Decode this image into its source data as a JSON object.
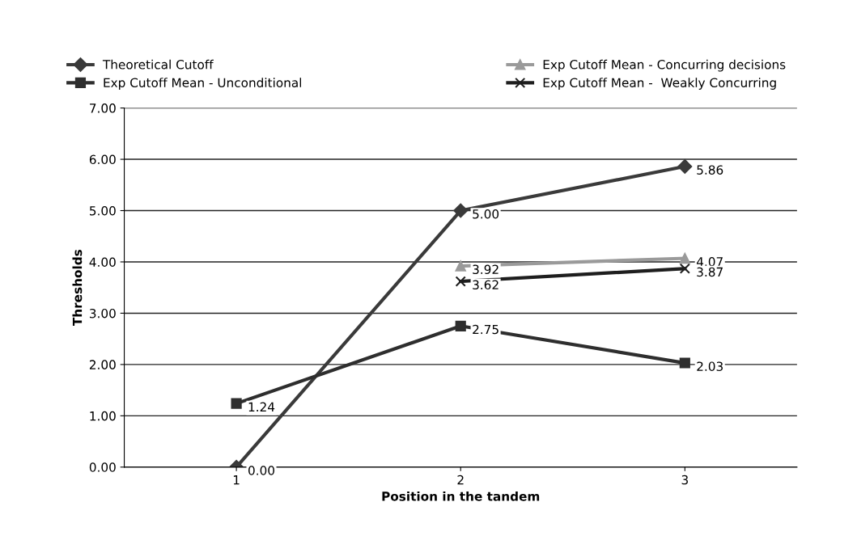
{
  "chart_data": {
    "type": "line",
    "xlabel": "Position in the tandem",
    "ylabel": "Thresholds",
    "categories": [
      "1",
      "2",
      "3"
    ],
    "series": [
      {
        "name": "Theoretical Cutoff",
        "color": "#3a3a3a",
        "marker": "diamond",
        "values": [
          0.0,
          5.0,
          5.86
        ],
        "value_labels": [
          "0.00",
          "5.00",
          "5.86"
        ]
      },
      {
        "name": "Exp Cutoff Mean - Unconditional",
        "color": "#2e2e2e",
        "marker": "square",
        "values": [
          1.24,
          2.75,
          2.03
        ],
        "value_labels": [
          "1.24",
          "2.75",
          "2.03"
        ]
      },
      {
        "name": "Exp Cutoff Mean - Concurring decisions",
        "color": "#9a9a9a",
        "marker": "triangle",
        "values": [
          null,
          3.92,
          4.07
        ],
        "value_labels": [
          null,
          "3.92",
          "4.07"
        ]
      },
      {
        "name": "Exp Cutoff Mean -  Weakly Concurring",
        "color": "#1e1e1e",
        "marker": "cross",
        "values": [
          null,
          3.62,
          3.87
        ],
        "value_labels": [
          null,
          "3.62",
          "3.87"
        ]
      }
    ],
    "ylim": [
      0,
      7
    ],
    "yticks": [
      {
        "value": 0,
        "label": "0.00"
      },
      {
        "value": 1,
        "label": "1.00"
      },
      {
        "value": 2,
        "label": "2.00"
      },
      {
        "value": 3,
        "label": "3.00"
      },
      {
        "value": 4,
        "label": "4.00"
      },
      {
        "value": 5,
        "label": "5.00"
      },
      {
        "value": 6,
        "label": "6.00"
      },
      {
        "value": 7,
        "label": "7.00"
      }
    ],
    "grid": "y",
    "legend": "top",
    "line_style": "solid"
  }
}
